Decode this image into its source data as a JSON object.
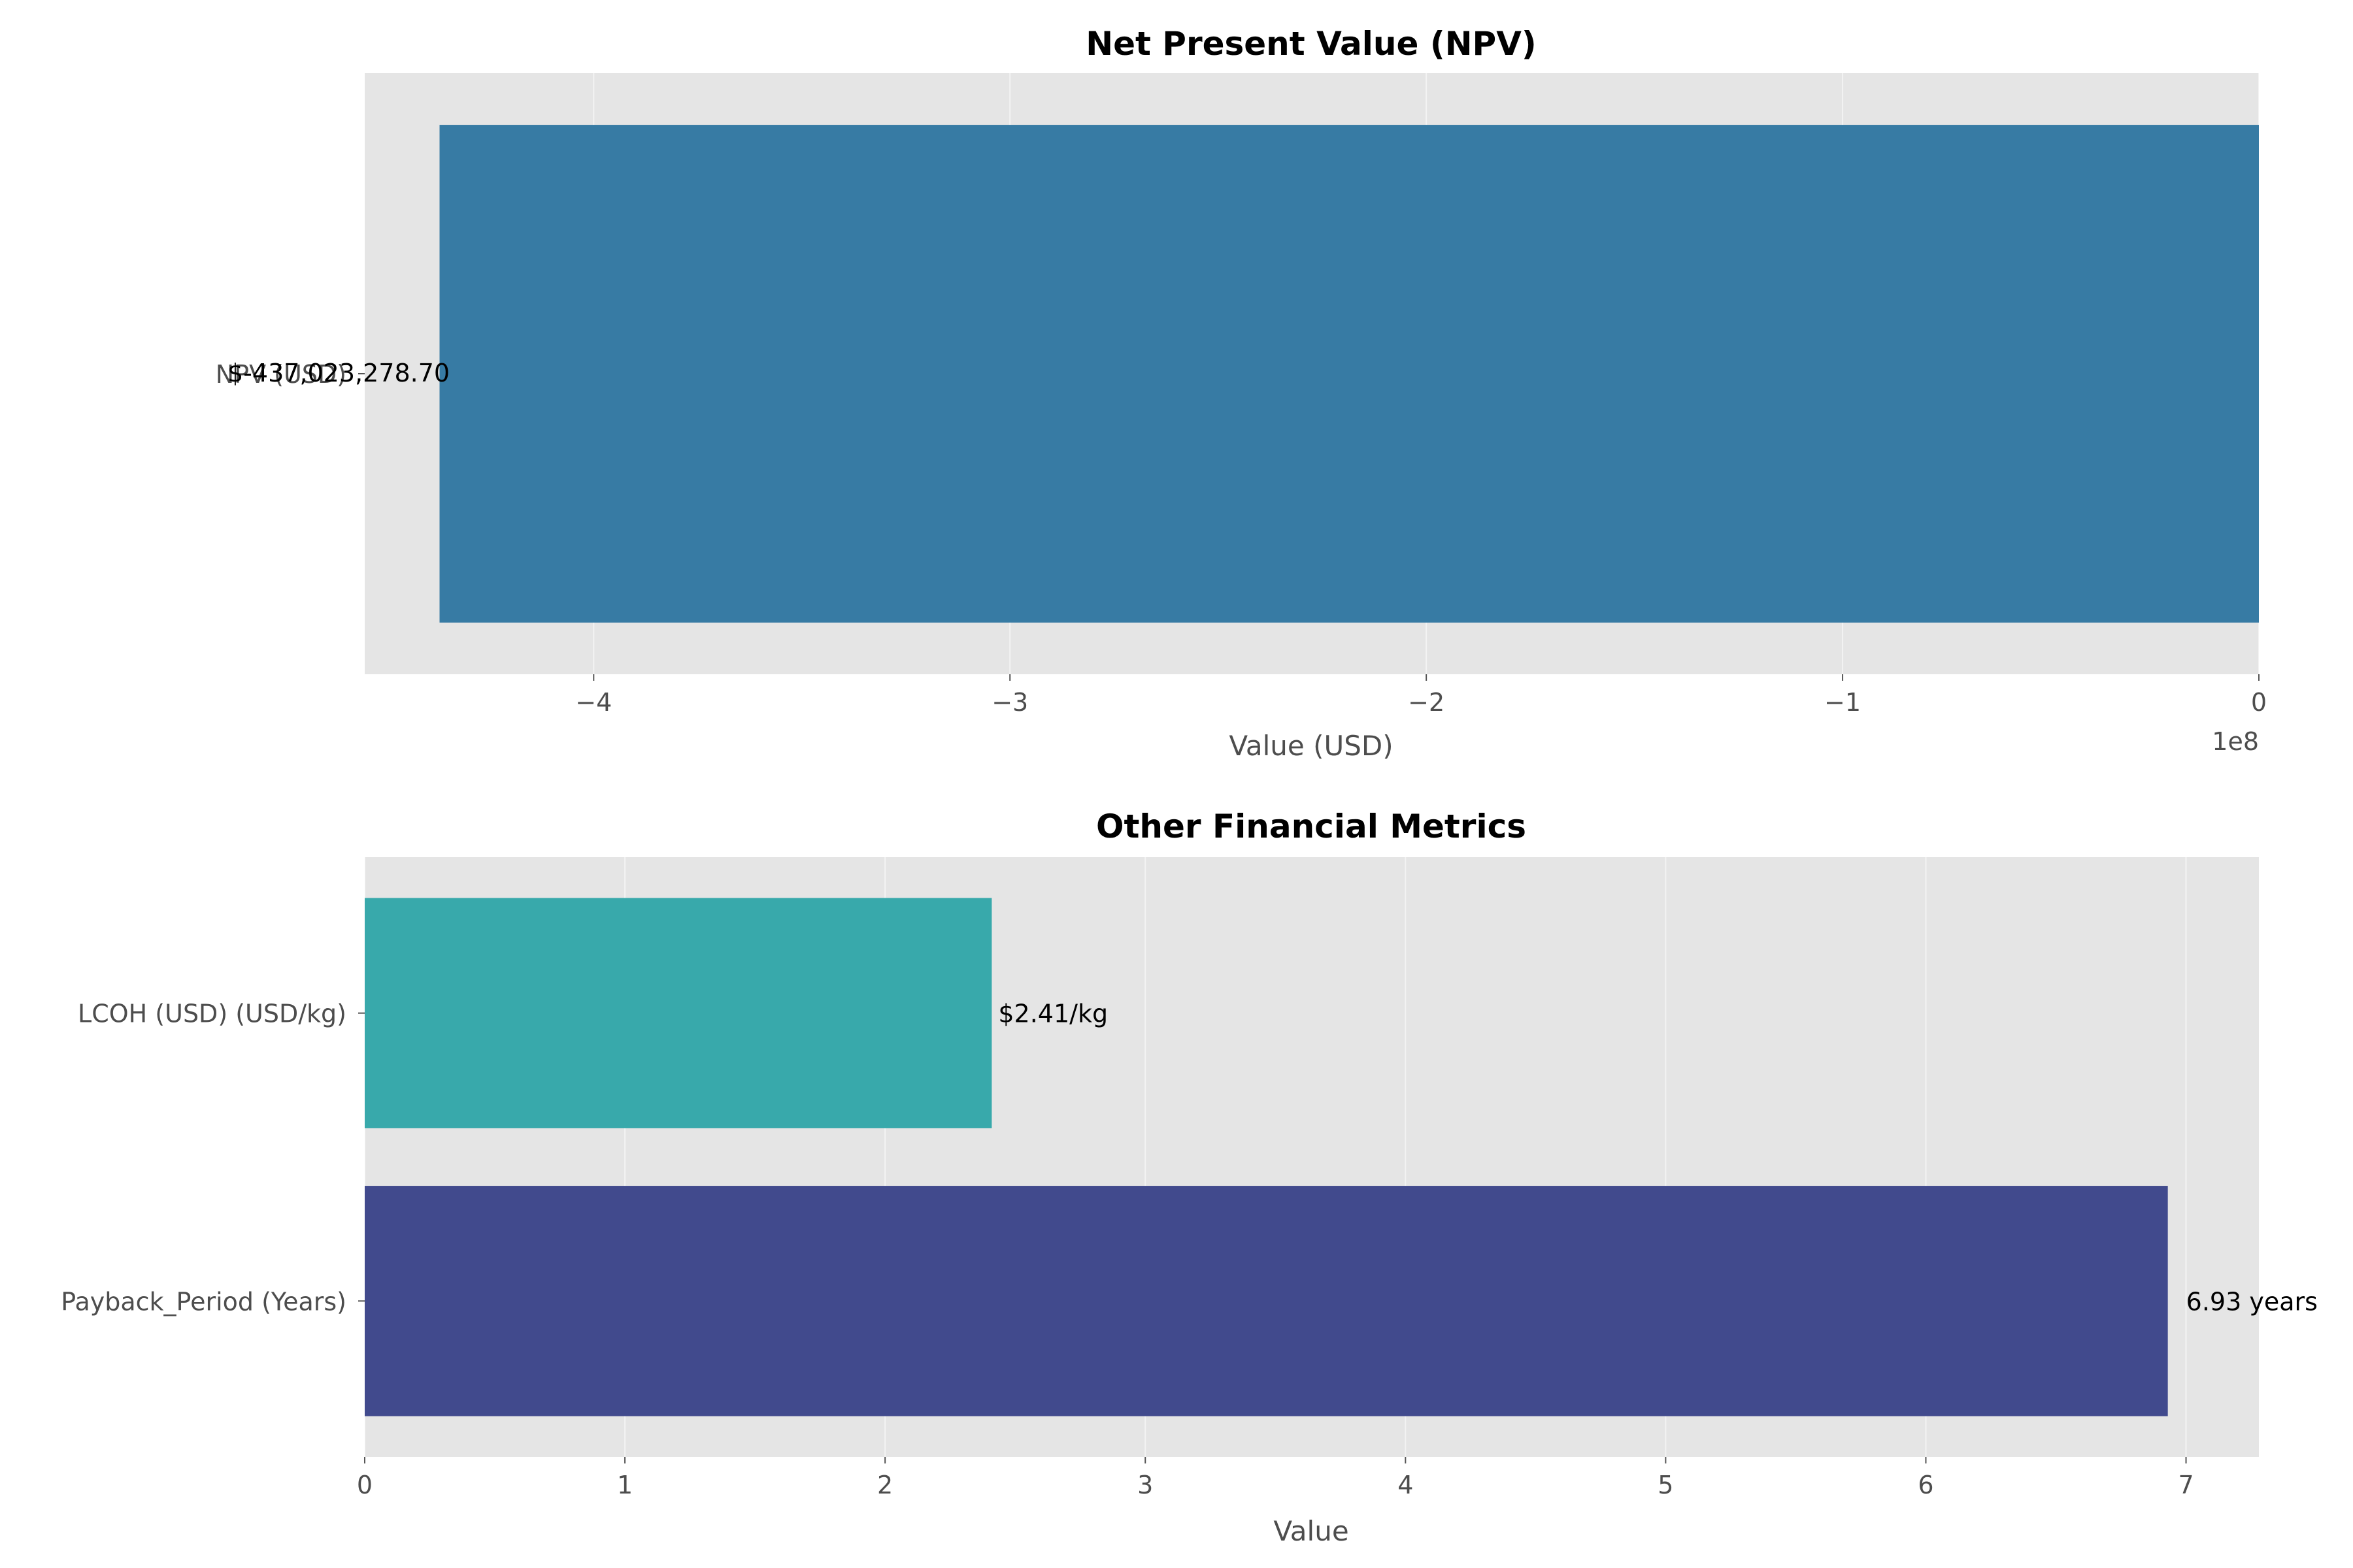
{
  "chart_data": [
    {
      "type": "bar",
      "orientation": "horizontal",
      "title": "Net Present Value (NPV)",
      "xlabel": "Value (USD)",
      "ylabel": "",
      "axis_offset_text": "1e8",
      "categories": [
        "NPV (USD)"
      ],
      "values": [
        -437023278.7
      ],
      "value_labels": [
        "$-437,023,278.70"
      ],
      "colors": [
        "#377ba4"
      ],
      "xlim": [
        -455000000,
        0
      ],
      "xticks": [
        -400000000,
        -300000000,
        -200000000,
        -100000000,
        0
      ],
      "xtick_labels": [
        "−4",
        "−3",
        "−2",
        "−1",
        "0"
      ],
      "grid": true,
      "background": "#e5e5e5"
    },
    {
      "type": "bar",
      "orientation": "horizontal",
      "title": "Other Financial Metrics",
      "xlabel": "Value",
      "ylabel": "",
      "categories": [
        "LCOH (USD) (USD/kg)",
        "Payback_Period (Years)"
      ],
      "values": [
        2.41,
        6.93
      ],
      "value_labels": [
        "$2.41/kg",
        "6.93 years"
      ],
      "colors": [
        "#38a9ab",
        "#414a8d"
      ],
      "xlim": [
        0,
        7.28
      ],
      "xticks": [
        0,
        1,
        2,
        3,
        4,
        5,
        6,
        7
      ],
      "xtick_labels": [
        "0",
        "1",
        "2",
        "3",
        "4",
        "5",
        "6",
        "7"
      ],
      "grid": true,
      "background": "#e5e5e5"
    }
  ]
}
